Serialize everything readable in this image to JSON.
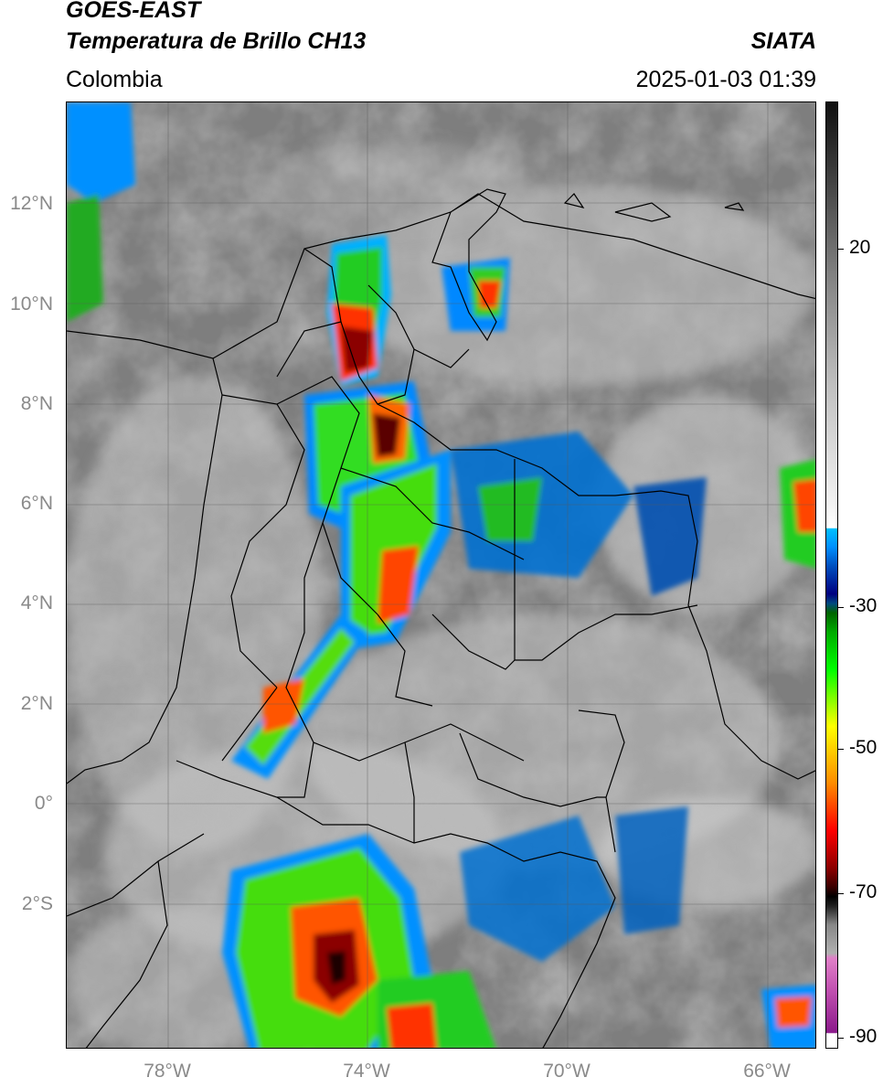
{
  "header": {
    "satellite": "GOES-EAST",
    "product": "Temperatura de Brillo CH13",
    "region": "Colombia",
    "agency": "SIATA",
    "datetime": "2025-01-03 01:39"
  },
  "map": {
    "lat_labels": [
      "12°N",
      "10°N",
      "8°N",
      "6°N",
      "4°N",
      "2°N",
      "0°",
      "2°S"
    ],
    "lon_labels": [
      "78°W",
      "74°W",
      "70°W",
      "66°W"
    ],
    "layers": [
      "country-borders",
      "department-borders",
      "coastline",
      "graticule",
      "brightness-temperature"
    ]
  },
  "colorbar": {
    "labels": [
      "20",
      "-30",
      "-50",
      "-70",
      "-90"
    ],
    "colors": [
      "#ffffff",
      "#8b1a8b",
      "#e080c8",
      "#b0b0b0",
      "#000000",
      "#8b0000",
      "#ff0000",
      "#ff8c00",
      "#ffff00",
      "#00ff00",
      "#006400",
      "#000080",
      "#0060c0",
      "#00bfff",
      "#f0f0f0",
      "#808080",
      "#101010"
    ]
  }
}
